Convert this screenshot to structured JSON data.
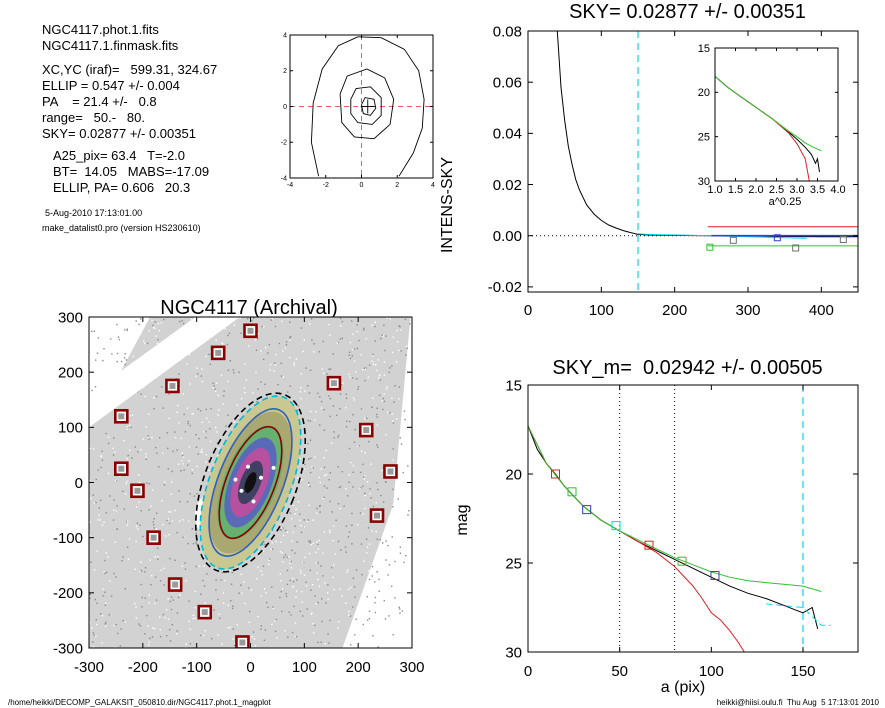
{
  "info": {
    "file1": "NGC4117.phot.1.fits",
    "file2": "NGC4117.1.finmask.fits",
    "xcyc": "XC,YC (iraf)=   599.31, 324.67",
    "ellip": "ELLIP = 0.547 +/- 0.004",
    "pa": "PA    = 21.4 +/-   0.8",
    "range": "range=   50.-   80.",
    "sky": "SKY= 0.02877 +/- 0.00351",
    "a25": "A25_pix= 63.4   T=-2.0",
    "bt": "BT=  14.05   MABS=-17.09",
    "ellip_pa": "ELLIP, PA= 0.606   20.3",
    "date": "5-Aug-2010 17:13:01.00",
    "program": "make_datalist0.pro (version HS230610)"
  },
  "footer": {
    "path": "/home/heikki/DECOMP_GALAKSIT_050810.dir/NGC4117.phot.1_magplot",
    "user": "heikki@hiisi.oulu.fi  Thu Aug  5 17:13:01 2010"
  },
  "colors": {
    "cyan": "#00d8f0",
    "red": "#e02020",
    "green": "#30c030",
    "blue": "#3040d0",
    "dark_red": "#8b0000",
    "gray": "#707070"
  },
  "chart_data": [
    {
      "id": "center-contour",
      "type": "contour",
      "title": "",
      "xlim": [
        -4,
        4
      ],
      "ylim": [
        -4,
        4
      ],
      "xticks": [
        -4,
        -2,
        0,
        2,
        4
      ],
      "yticks": [
        -4,
        -2,
        0,
        2,
        4
      ],
      "center": [
        0.35,
        0.0
      ],
      "contours": [
        [
          [
            -0.2,
            3.9
          ],
          [
            1.1,
            3.85
          ],
          [
            2.4,
            3.2
          ],
          [
            3.2,
            2.0
          ],
          [
            3.5,
            0.4
          ],
          [
            3.4,
            -1.2
          ],
          [
            2.9,
            -2.6
          ],
          [
            2.1,
            -3.9
          ]
        ],
        [
          [
            -2.4,
            -3.9
          ],
          [
            -2.8,
            -2.0
          ],
          [
            -2.7,
            0.2
          ],
          [
            -2.2,
            2.1
          ],
          [
            -1.3,
            3.4
          ],
          [
            -0.2,
            3.9
          ]
        ],
        [
          [
            -1.2,
            0.7
          ],
          [
            -0.8,
            1.7
          ],
          [
            0.3,
            2.1
          ],
          [
            1.3,
            1.6
          ],
          [
            1.8,
            0.4
          ],
          [
            1.6,
            -1.0
          ],
          [
            0.7,
            -1.8
          ],
          [
            -0.4,
            -1.7
          ],
          [
            -1.1,
            -0.9
          ],
          [
            -1.2,
            0.7
          ]
        ],
        [
          [
            -0.6,
            0.4
          ],
          [
            -0.3,
            1.0
          ],
          [
            0.5,
            1.1
          ],
          [
            1.1,
            0.5
          ],
          [
            1.1,
            -0.5
          ],
          [
            0.6,
            -1.0
          ],
          [
            -0.2,
            -0.9
          ],
          [
            -0.6,
            -0.4
          ],
          [
            -0.6,
            0.4
          ]
        ],
        [
          [
            0.0,
            0.1
          ],
          [
            0.2,
            0.5
          ],
          [
            0.7,
            0.4
          ],
          [
            0.8,
            -0.1
          ],
          [
            0.5,
            -0.5
          ],
          [
            0.1,
            -0.4
          ],
          [
            0.0,
            0.1
          ]
        ]
      ]
    },
    {
      "id": "sky-plot",
      "type": "line",
      "title": "SKY= 0.02877 +/- 0.00351",
      "xlabel": "",
      "ylabel": "INTENS-SKY",
      "xlim": [
        0,
        450
      ],
      "ylim": [
        -0.022,
        0.08
      ],
      "xticks": [
        0,
        100,
        200,
        300,
        400
      ],
      "yticks": [
        -0.02,
        0.0,
        0.02,
        0.04,
        0.06,
        0.08
      ],
      "ytick_labels": [
        "-0.02",
        "0.00",
        "0.02",
        "0.04",
        "0.06",
        "0.08"
      ],
      "vline_x": 150,
      "series": [
        {
          "name": "",
          "color": "black",
          "x": [
            40,
            45,
            50,
            55,
            60,
            65,
            70,
            80,
            90,
            100,
            110,
            120,
            130,
            140,
            150,
            160,
            180,
            200,
            250,
            300,
            350,
            400,
            450
          ],
          "y": [
            0.08,
            0.058,
            0.045,
            0.035,
            0.028,
            0.022,
            0.018,
            0.012,
            0.0085,
            0.006,
            0.0042,
            0.003,
            0.002,
            0.0012,
            0.0005,
            0.0003,
            0.0002,
            0.0001,
            0.0,
            -0.0002,
            -0.0003,
            -0.0004,
            -0.0004
          ]
        },
        {
          "name": "",
          "color": "cyan",
          "x": [
            150,
            160,
            180,
            200,
            250,
            300,
            350,
            380
          ],
          "y": [
            0.0008,
            0.0006,
            0.0004,
            0.0003,
            0.0,
            -0.0004,
            -0.0008,
            -0.001
          ]
        },
        {
          "name": "",
          "color": "red",
          "x": [
            245,
            450
          ],
          "y": [
            0.0035,
            0.0035
          ]
        },
        {
          "name": "",
          "color": "green",
          "x": [
            245,
            450
          ],
          "y": [
            -0.004,
            -0.004
          ]
        },
        {
          "name": "",
          "color": "blue",
          "x": [
            250,
            450
          ],
          "y": [
            0.0,
            0.0
          ]
        }
      ],
      "markers": [
        {
          "x": 248,
          "y": -0.0045,
          "color": "green"
        },
        {
          "x": 280,
          "y": -0.0018,
          "color": "gray"
        },
        {
          "x": 340,
          "y": -0.0008,
          "color": "blue"
        },
        {
          "x": 365,
          "y": -0.0048,
          "color": "gray"
        },
        {
          "x": 430,
          "y": -0.0015,
          "color": "gray"
        }
      ],
      "inset": {
        "type": "line",
        "xlabel": "a^0.25",
        "xlim": [
          1.0,
          4.0
        ],
        "ylim": [
          15,
          30
        ],
        "y_reversed": true,
        "xticks": [
          1.0,
          1.5,
          2.0,
          2.5,
          3.0,
          3.5,
          4.0
        ],
        "xtick_labels": [
          "1.0",
          "1.5",
          "2.0",
          "2.5",
          "3.0",
          "3.5",
          "4.0"
        ],
        "yticks": [
          15,
          20,
          25,
          30
        ],
        "series": [
          {
            "name": "",
            "color": "black",
            "x": [
              1.0,
              1.3,
              1.6,
              2.0,
              2.4,
              2.8,
              3.0,
              3.2,
              3.35,
              3.45,
              3.5,
              3.55
            ],
            "y": [
              18.2,
              19.4,
              20.4,
              21.7,
              23.0,
              24.5,
              25.3,
              26.2,
              27.0,
              28.0,
              27.5,
              29.0
            ]
          },
          {
            "name": "",
            "color": "red",
            "x": [
              1.0,
              1.3,
              1.6,
              2.0,
              2.4,
              2.8,
              3.0,
              3.2,
              3.3
            ],
            "y": [
              18.2,
              19.4,
              20.4,
              21.7,
              23.0,
              24.6,
              25.8,
              27.5,
              30.0
            ]
          },
          {
            "name": "",
            "color": "green",
            "x": [
              1.0,
              1.3,
              1.6,
              2.0,
              2.4,
              2.8,
              3.0,
              3.2,
              3.4,
              3.6
            ],
            "y": [
              18.2,
              19.4,
              20.4,
              21.7,
              23.0,
              24.4,
              25.0,
              25.7,
              26.2,
              26.6
            ]
          }
        ]
      }
    },
    {
      "id": "galaxy-image",
      "type": "image",
      "title": "NGC4117 (Archival)",
      "xlim": [
        -300,
        300
      ],
      "ylim": [
        -300,
        300
      ],
      "xticks": [
        -300,
        -200,
        -100,
        0,
        100,
        200,
        300
      ],
      "yticks": [
        -300,
        -200,
        -100,
        0,
        100,
        200,
        300
      ],
      "sky_boxes": [
        [
          0,
          275
        ],
        [
          -60,
          235
        ],
        [
          -145,
          175
        ],
        [
          -240,
          120
        ],
        [
          -240,
          25
        ],
        [
          -210,
          -15
        ],
        [
          -180,
          -100
        ],
        [
          -140,
          -185
        ],
        [
          -85,
          -235
        ],
        [
          -15,
          -290
        ],
        [
          155,
          180
        ],
        [
          215,
          95
        ],
        [
          260,
          20
        ],
        [
          235,
          -60
        ]
      ],
      "ellipse_axes": [
        [
          45,
          110
        ],
        [
          60,
          145
        ],
        [
          75,
          170
        ],
        [
          85,
          175
        ]
      ]
    },
    {
      "id": "magnitude-profile",
      "type": "line",
      "title": "SKY_m=  0.02942 +/- 0.00505",
      "xlabel": "a (pix)",
      "ylabel": "mag",
      "xlim": [
        0,
        180
      ],
      "ylim": [
        15,
        30
      ],
      "y_reversed": true,
      "xticks": [
        0,
        50,
        100,
        150
      ],
      "yticks": [
        15,
        20,
        25,
        30
      ],
      "vlines_dotted": [
        50,
        80
      ],
      "vline_dashed": 150,
      "series": [
        {
          "name": "",
          "color": "black",
          "x": [
            0,
            5,
            10,
            15,
            20,
            30,
            40,
            50,
            60,
            70,
            80,
            90,
            100,
            110,
            120,
            130,
            140,
            145,
            150,
            155,
            158
          ],
          "y": [
            17.3,
            18.6,
            19.4,
            20.0,
            20.7,
            21.8,
            22.6,
            23.2,
            23.8,
            24.3,
            24.8,
            25.3,
            25.8,
            26.3,
            26.7,
            27.0,
            27.4,
            27.6,
            27.8,
            27.5,
            28.7
          ]
        },
        {
          "name": "",
          "color": "red",
          "x": [
            0,
            10,
            20,
            30,
            40,
            50,
            60,
            70,
            80,
            90,
            95,
            100,
            105,
            110,
            115,
            118
          ],
          "y": [
            17.3,
            19.4,
            20.7,
            21.8,
            22.6,
            23.2,
            23.8,
            24.4,
            25.2,
            26.3,
            27.0,
            27.8,
            28.2,
            28.8,
            29.5,
            30.0
          ]
        },
        {
          "name": "",
          "color": "green",
          "x": [
            0,
            10,
            20,
            30,
            40,
            50,
            60,
            70,
            80,
            90,
            100,
            110,
            120,
            130,
            140,
            150,
            160
          ],
          "y": [
            17.3,
            19.4,
            20.7,
            21.8,
            22.6,
            23.2,
            23.7,
            24.2,
            24.7,
            25.1,
            25.5,
            25.8,
            26.0,
            26.1,
            26.2,
            26.3,
            26.6
          ]
        },
        {
          "name": "",
          "color": "cyan",
          "x": [
            130,
            140,
            150,
            160,
            165
          ],
          "y": [
            27.3,
            27.4,
            27.5,
            28.5,
            28.5
          ]
        }
      ],
      "markers": [
        {
          "x": 15,
          "y": 20.0,
          "color": "red"
        },
        {
          "x": 24,
          "y": 21.0,
          "color": "green"
        },
        {
          "x": 32,
          "y": 22.0,
          "color": "blue"
        },
        {
          "x": 48,
          "y": 22.9,
          "color": "cyan"
        },
        {
          "x": 66,
          "y": 24.0,
          "color": "red"
        },
        {
          "x": 84,
          "y": 24.9,
          "color": "green"
        },
        {
          "x": 102,
          "y": 25.7,
          "color": "blue"
        }
      ]
    }
  ]
}
